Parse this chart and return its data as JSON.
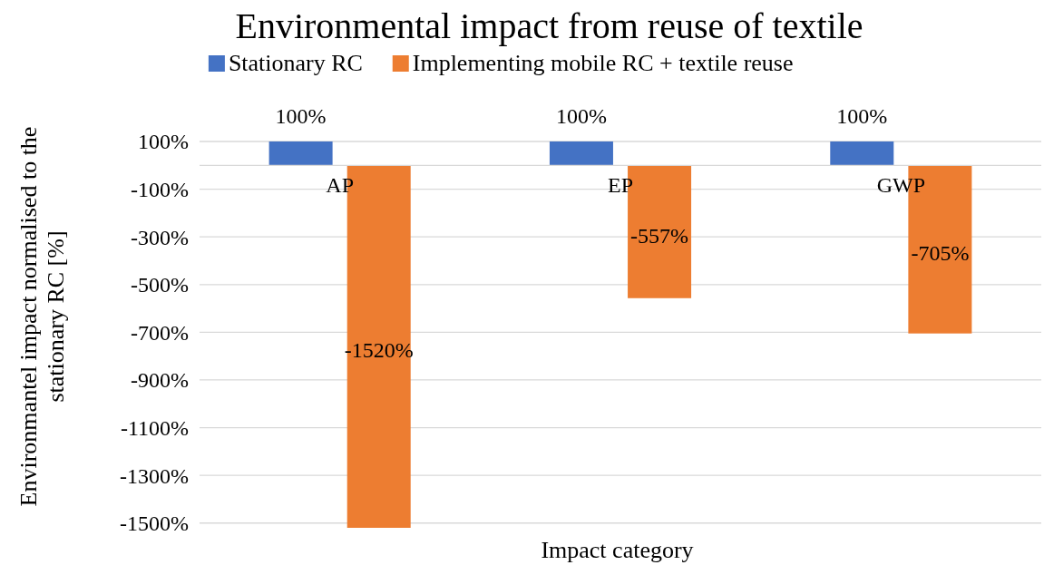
{
  "chart_data": {
    "type": "bar",
    "title": "Environmental impact from reuse of textile",
    "xlabel": "Impact category",
    "ylabel": "Environmantel impact normalised to the stationary RC [%]",
    "categories": [
      "AP",
      "EP",
      "GWP"
    ],
    "series": [
      {
        "name": "Stationary RC",
        "color": "#4472c4",
        "values": [
          100,
          100,
          100
        ],
        "value_labels": [
          "100%",
          "100%",
          "100%"
        ]
      },
      {
        "name": "Implementing mobile RC + textile reuse",
        "color": "#ed7d31",
        "values": [
          -1520,
          -557,
          -705
        ],
        "value_labels": [
          "-1520%",
          "-557%",
          "-705%"
        ]
      }
    ],
    "ylim": [
      -1520,
      100
    ],
    "yticks": [
      {
        "value": 100,
        "label": "100%"
      },
      {
        "value": -100,
        "label": "-100%"
      },
      {
        "value": -300,
        "label": "-300%"
      },
      {
        "value": -500,
        "label": "-500%"
      },
      {
        "value": -700,
        "label": "-700%"
      },
      {
        "value": -900,
        "label": "-900%"
      },
      {
        "value": -1100,
        "label": "-1100%"
      },
      {
        "value": -1300,
        "label": "-1300%"
      },
      {
        "value": -1500,
        "label": "-1500%"
      }
    ],
    "grid": "y",
    "legend": "top"
  }
}
